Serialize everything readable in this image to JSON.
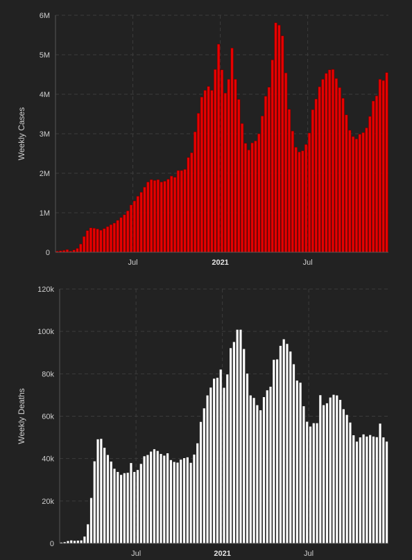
{
  "chart_data": [
    {
      "type": "bar",
      "ylabel": "Weekly Cases",
      "ylim": [
        0,
        6000000
      ],
      "yticks": [
        0,
        1000000,
        2000000,
        3000000,
        4000000,
        5000000,
        6000000
      ],
      "ytick_labels": [
        "0",
        "1M",
        "2M",
        "3M",
        "4M",
        "5M",
        "6M"
      ],
      "xticks": [
        {
          "week_index": 23,
          "label": "Jul",
          "bold": false
        },
        {
          "week_index": 49,
          "label": "2021",
          "bold": true
        },
        {
          "week_index": 75,
          "label": "Jul",
          "bold": false
        }
      ],
      "grid": true,
      "bar_color": "#e60000",
      "bar_edge_color": "#6a0000",
      "values": [
        30000,
        40000,
        50000,
        70000,
        30000,
        60000,
        100000,
        210000,
        400000,
        550000,
        620000,
        610000,
        590000,
        560000,
        600000,
        650000,
        700000,
        740000,
        810000,
        880000,
        950000,
        1050000,
        1200000,
        1300000,
        1420000,
        1520000,
        1650000,
        1780000,
        1840000,
        1820000,
        1840000,
        1780000,
        1800000,
        1850000,
        1930000,
        1900000,
        2070000,
        2070000,
        2100000,
        2400000,
        2520000,
        3050000,
        3520000,
        3930000,
        4100000,
        4200000,
        4100000,
        4630000,
        5270000,
        4620000,
        4030000,
        4380000,
        5170000,
        4380000,
        3870000,
        3260000,
        2760000,
        2590000,
        2770000,
        2820000,
        3000000,
        3450000,
        3950000,
        4180000,
        4870000,
        5810000,
        5750000,
        5480000,
        4540000,
        3620000,
        3070000,
        2660000,
        2540000,
        2570000,
        2730000,
        3020000,
        3610000,
        3880000,
        4190000,
        4380000,
        4530000,
        4620000,
        4630000,
        4400000,
        4170000,
        3900000,
        3480000,
        3090000,
        2930000,
        2870000,
        2990000,
        3030000,
        3150000,
        3440000,
        3830000,
        3960000,
        4380000,
        4350000,
        4550000
      ]
    },
    {
      "type": "bar",
      "ylabel": "Weekly Deaths",
      "ylim": [
        0,
        120000
      ],
      "yticks": [
        0,
        20000,
        40000,
        60000,
        80000,
        100000,
        120000
      ],
      "ytick_labels": [
        "0",
        "20k",
        "40k",
        "60k",
        "80k",
        "100k",
        "120k"
      ],
      "xticks": [
        {
          "week_index": 23,
          "label": "Jul",
          "bold": false
        },
        {
          "week_index": 49,
          "label": "2021",
          "bold": true
        },
        {
          "week_index": 75,
          "label": "Jul",
          "bold": false
        }
      ],
      "grid": true,
      "bar_color": "#ffffff",
      "bar_edge_color": "#222222",
      "values": [
        500,
        700,
        1200,
        1500,
        1300,
        1400,
        1500,
        3300,
        9100,
        21500,
        38800,
        49200,
        49400,
        45200,
        41800,
        38700,
        35300,
        33800,
        32400,
        33200,
        33400,
        38000,
        33800,
        34700,
        37600,
        41200,
        41800,
        43400,
        44500,
        43700,
        42300,
        41500,
        42600,
        39400,
        38500,
        38200,
        39600,
        40300,
        40700,
        38100,
        42000,
        47300,
        57400,
        63800,
        69900,
        73600,
        77800,
        78200,
        82100,
        73500,
        79800,
        92200,
        95100,
        100900,
        100900,
        91800,
        80200,
        69900,
        68700,
        65300,
        62900,
        69100,
        72300,
        74000,
        86700,
        86900,
        93300,
        96400,
        94200,
        90600,
        84600,
        76900,
        75900,
        64800,
        57500,
        55200,
        56800,
        56800,
        70000,
        65300,
        66200,
        68900,
        70200,
        69900,
        67800,
        63400,
        60700,
        57100,
        51100,
        48100,
        50100,
        51500,
        50500,
        51200,
        50500,
        50200,
        56600,
        50100,
        48100
      ]
    }
  ]
}
